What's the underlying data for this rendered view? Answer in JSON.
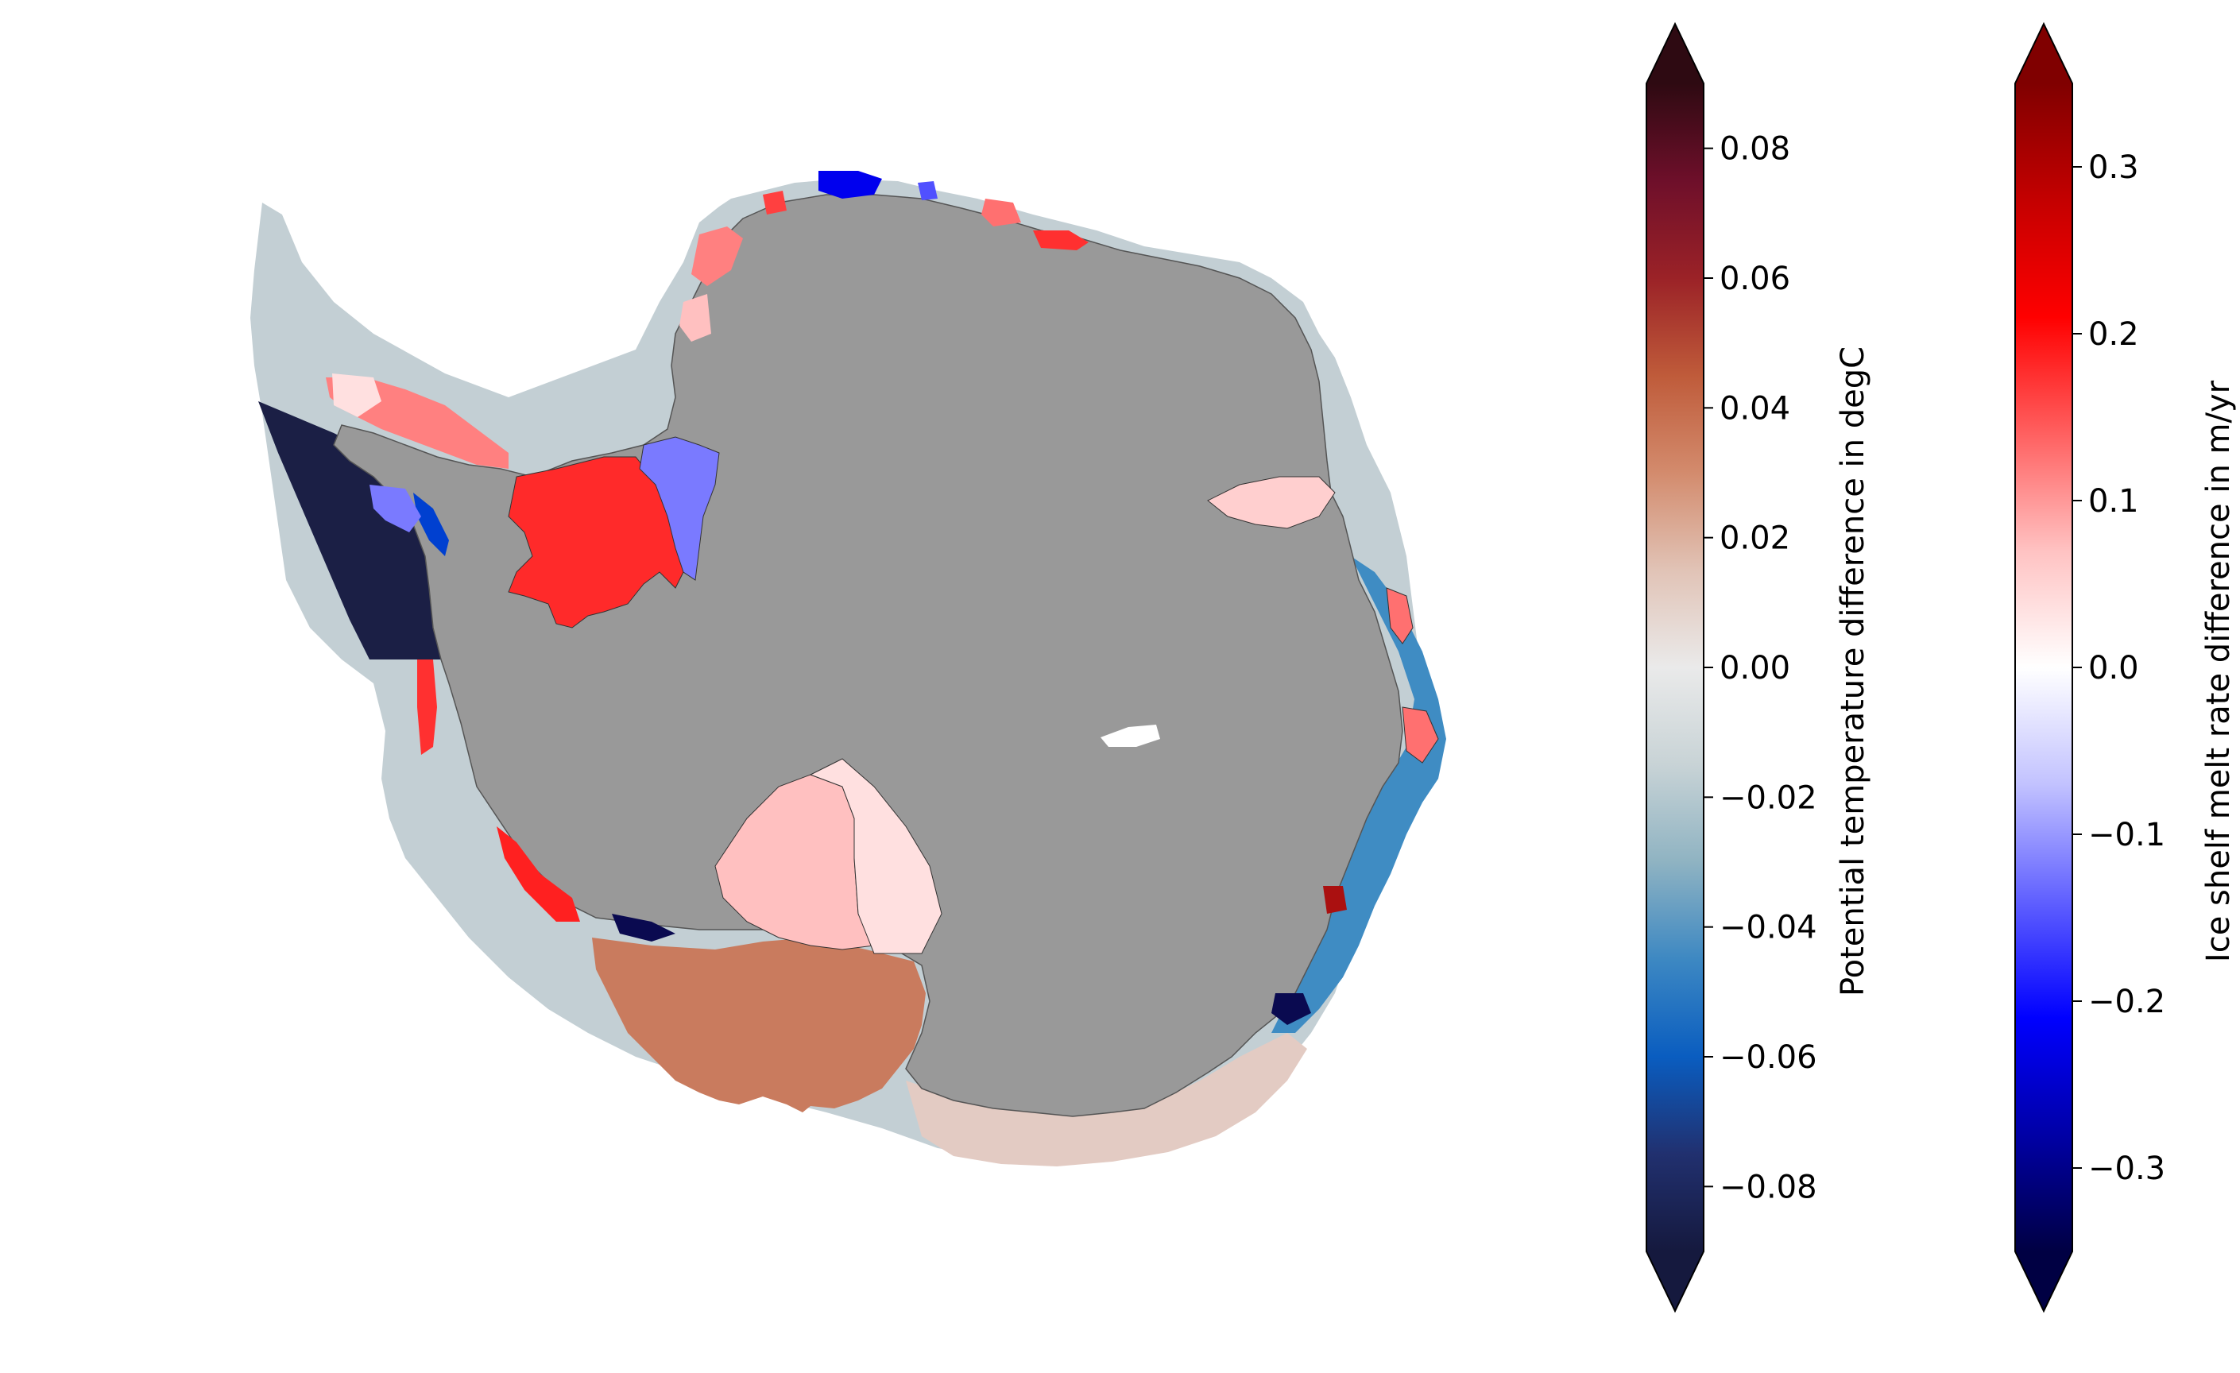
{
  "map": {
    "land_color": "#999999",
    "open_ocean_color": "#c3cfd4"
  },
  "colorbars": [
    {
      "id": "temperature",
      "label": "Potential temperature difference in degC",
      "cmap": [
        "#15193e",
        "#21306f",
        "#0a5dc0",
        "#3d88c2",
        "#8fb3c2",
        "#c8d3d6",
        "#eaeaea",
        "#e1c3b6",
        "#d38b6d",
        "#bf5b3a",
        "#9b2227",
        "#6e0f2a",
        "#2e0a12"
      ],
      "range": [
        -0.09,
        0.09
      ],
      "extend": "both",
      "ticks": [
        "−0.08",
        "−0.06",
        "−0.04",
        "−0.02",
        "0.00",
        "0.02",
        "0.04",
        "0.06",
        "0.08"
      ],
      "tick_values": [
        -0.08,
        -0.06,
        -0.04,
        -0.02,
        0,
        0.02,
        0.04,
        0.06,
        0.08
      ]
    },
    {
      "id": "melt",
      "label": "Ice shelf melt rate difference in m/yr",
      "cmap": [
        "#000043",
        "#0000a6",
        "#0000ff",
        "#6060ff",
        "#c2c2ff",
        "#ffffff",
        "#ffc2c2",
        "#ff6060",
        "#ff0000",
        "#c40000",
        "#800000"
      ],
      "range": [
        -0.35,
        0.35
      ],
      "extend": "both",
      "ticks": [
        "−0.3",
        "−0.2",
        "−0.1",
        "0.0",
        "0.1",
        "0.2",
        "0.3"
      ],
      "tick_values": [
        -0.3,
        -0.2,
        -0.1,
        0,
        0.1,
        0.2,
        0.3
      ]
    }
  ]
}
